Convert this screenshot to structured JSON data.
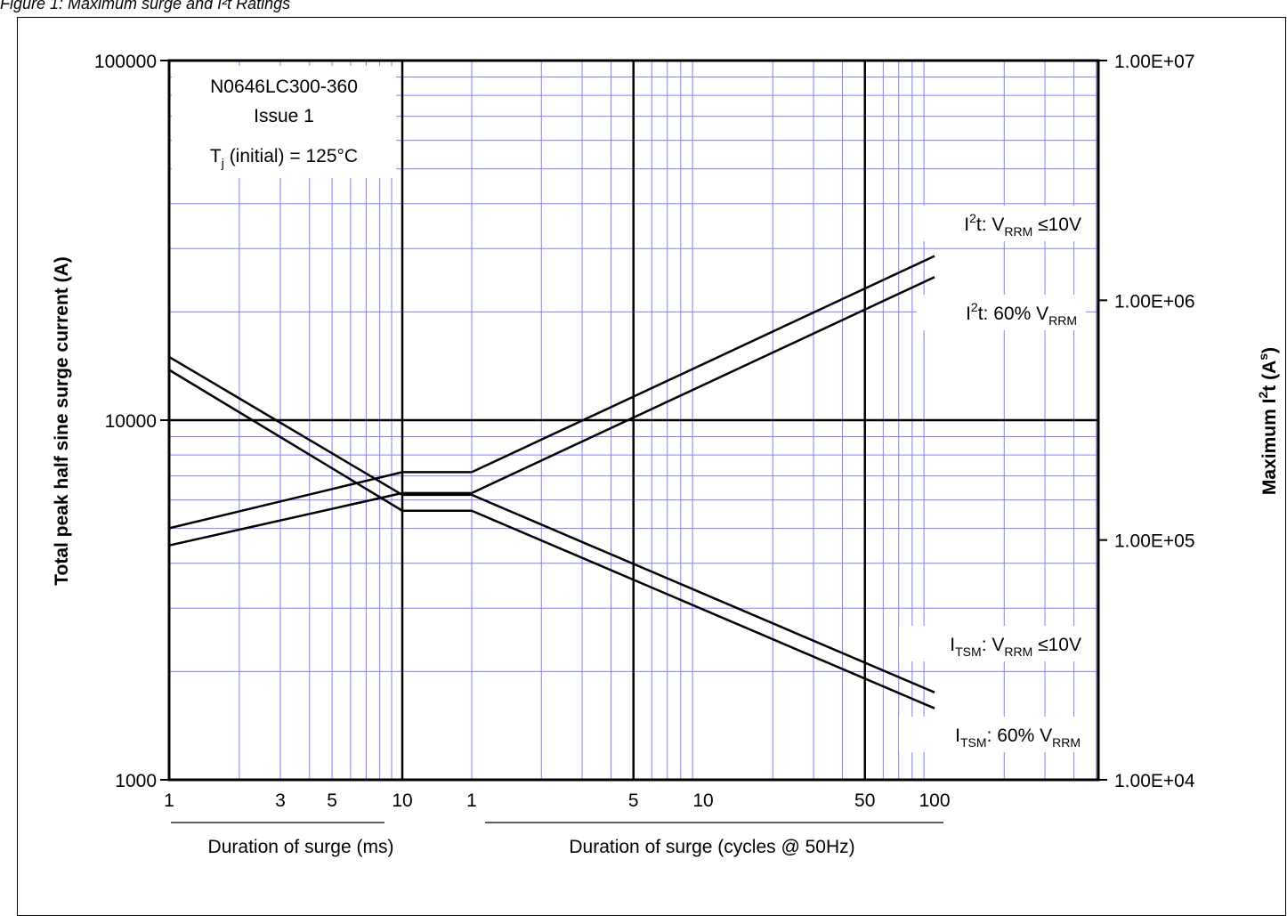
{
  "figure_caption": "Figure 1: Maximum surge and I²t Ratings",
  "chart_data": {
    "type": "line",
    "title_box": {
      "line1": "N0646LC300-360",
      "line2": "Issue 1",
      "line3_main": "T",
      "line3_sub": "j",
      "line3_rest": " (initial) = 125°C"
    },
    "ylabel_left": "Total peak half sine surge current (A)",
    "ylabel_right": {
      "main": "Maximum I",
      "sup1": "2",
      "mid": "t (A",
      "sup2": "s",
      "end": ")"
    },
    "y_left": {
      "scale": "log",
      "min": 1000,
      "max": 100000,
      "ticks": [
        {
          "v": 100000,
          "label": "100000"
        },
        {
          "v": 10000,
          "label": "10000"
        },
        {
          "v": 1000,
          "label": "1000"
        }
      ]
    },
    "y_right": {
      "scale": "log",
      "min": 10000,
      "max": 10000000,
      "ticks": [
        {
          "v": 10000000,
          "label": "1.00E+07"
        },
        {
          "v": 1000000,
          "label": "1.00E+06"
        },
        {
          "v": 100000,
          "label": "1.00E+05"
        },
        {
          "v": 10000,
          "label": "1.00E+04"
        }
      ]
    },
    "x_ms": {
      "unit": "ms",
      "scale": "log",
      "min": 1,
      "max": 10,
      "ticks": [
        {
          "v": 1,
          "label": "1"
        },
        {
          "v": 3,
          "label": "3"
        },
        {
          "v": 5,
          "label": "5"
        },
        {
          "v": 10,
          "label": "10"
        }
      ],
      "label": "Duration of surge (ms)"
    },
    "x_cycles": {
      "unit": "cycles",
      "scale": "log",
      "min": 1,
      "max": 100,
      "ticks": [
        {
          "v": 1,
          "label": "1"
        },
        {
          "v": 5,
          "label": "5"
        },
        {
          "v": 10,
          "label": "10"
        },
        {
          "v": 50,
          "label": "50"
        },
        {
          "v": 100,
          "label": "100"
        }
      ],
      "label": "Duration of surge (cycles @ 50Hz)"
    },
    "grid": true,
    "series": [
      {
        "name": "ITSM: VRRM ≤10V",
        "axis": "left",
        "points": [
          {
            "seg": "ms",
            "x": 1,
            "y": 15000
          },
          {
            "seg": "ms",
            "x": 10,
            "y": 6200
          },
          {
            "seg": "cycles",
            "x": 1,
            "y": 6200
          },
          {
            "seg": "cycles",
            "x": 100,
            "y": 1750
          }
        ]
      },
      {
        "name": "ITSM: 60% VRRM",
        "axis": "left",
        "points": [
          {
            "seg": "ms",
            "x": 1,
            "y": 13800
          },
          {
            "seg": "ms",
            "x": 10,
            "y": 5600
          },
          {
            "seg": "cycles",
            "x": 1,
            "y": 5600
          },
          {
            "seg": "cycles",
            "x": 100,
            "y": 1580
          }
        ]
      },
      {
        "name": "I2t: VRRM ≤10V",
        "axis": "right",
        "points": [
          {
            "seg": "ms",
            "x": 1,
            "y": 112000
          },
          {
            "seg": "ms",
            "x": 10,
            "y": 192000
          },
          {
            "seg": "cycles",
            "x": 1,
            "y": 192000
          },
          {
            "seg": "cycles",
            "x": 100,
            "y": 1530000
          }
        ]
      },
      {
        "name": "I2t: 60% VRRM",
        "axis": "right",
        "points": [
          {
            "seg": "ms",
            "x": 1,
            "y": 95000
          },
          {
            "seg": "ms",
            "x": 10,
            "y": 157000
          },
          {
            "seg": "cycles",
            "x": 1,
            "y": 157000
          },
          {
            "seg": "cycles",
            "x": 100,
            "y": 1250000
          }
        ]
      }
    ],
    "series_labels": [
      {
        "id": "i2t_10v",
        "parts": [
          [
            "I",
            ""
          ],
          [
            "2",
            "sup"
          ],
          [
            "t: V",
            ""
          ],
          [
            "RRM",
            "sub"
          ],
          [
            " ≤10V",
            ""
          ]
        ]
      },
      {
        "id": "i2t_60",
        "parts": [
          [
            "I",
            ""
          ],
          [
            "2",
            "sup"
          ],
          [
            "t: 60% V",
            ""
          ],
          [
            "RRM",
            "sub"
          ]
        ]
      },
      {
        "id": "itsm_10v",
        "parts": [
          [
            "I",
            ""
          ],
          [
            "TSM",
            "sub"
          ],
          [
            ": V",
            ""
          ],
          [
            "RRM",
            "sub"
          ],
          [
            " ≤10V",
            ""
          ]
        ]
      },
      {
        "id": "itsm_60",
        "parts": [
          [
            "I",
            ""
          ],
          [
            "TSM",
            "sub"
          ],
          [
            ": 60% V",
            ""
          ],
          [
            "RRM",
            "sub"
          ]
        ]
      }
    ],
    "colors": {
      "grid": "#8080ff",
      "major": "#000000",
      "curve": "#000000"
    }
  }
}
